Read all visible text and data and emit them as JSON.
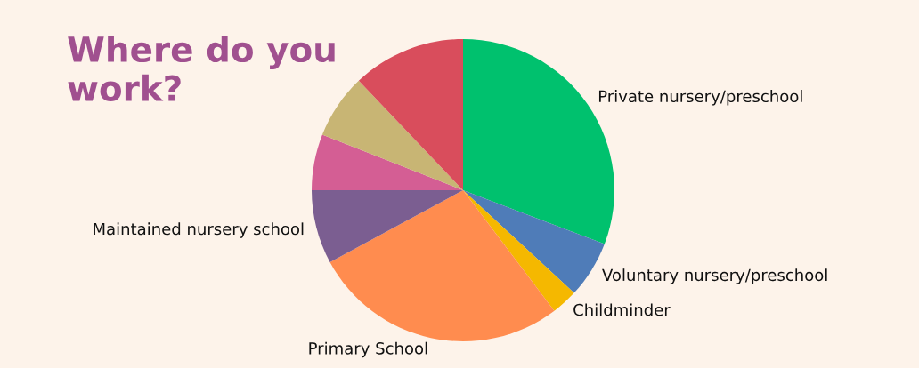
{
  "chart_data": {
    "type": "pie",
    "title": "Where do you work?",
    "categories": [
      "Private nursery/preschool",
      "Voluntary nursery/preschool",
      "Childminder",
      "Primary School",
      "Maintained nursery school",
      null,
      null,
      null
    ],
    "values": [
      30.8,
      6.1,
      2.8,
      27.4,
      7.9,
      6.0,
      6.9,
      12.1
    ],
    "colors": [
      "#00c16e",
      "#4f7cb8",
      "#f5b800",
      "#ff8c4f",
      "#7b5e91",
      "#d45e94",
      "#c8b574",
      "#d94d5c"
    ],
    "legend": false
  }
}
